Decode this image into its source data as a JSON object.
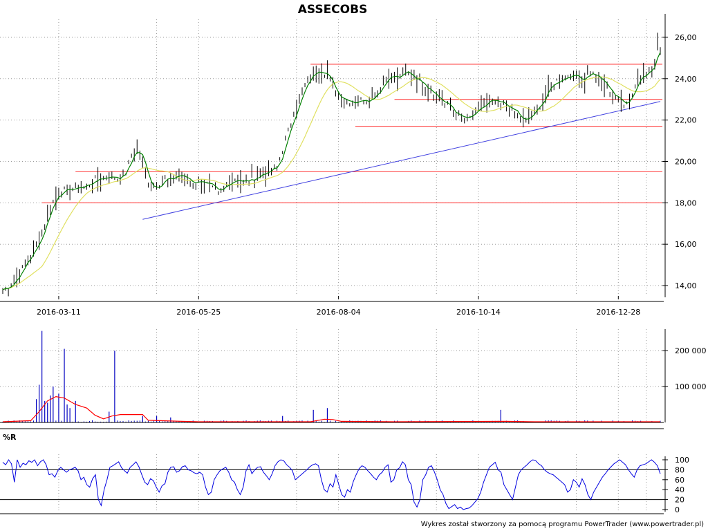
{
  "chart_data": {
    "title": "ASSECOBS",
    "footer": "Wykres został stworzony za pomocą programu PowerTrader (www.powertrader.pl)",
    "price_panel": {
      "type": "bar",
      "ylim": [
        13.5,
        26.8
      ],
      "yticks": [
        "14,00",
        "16,00",
        "18,00",
        "20,00",
        "22,00",
        "24,00",
        "26,00"
      ],
      "ytick_values": [
        14,
        16,
        18,
        20,
        22,
        24,
        26
      ],
      "xlabels": [
        "2016-03-11",
        "2016-05-25",
        "2016-08-04",
        "2016-10-14",
        "2016-12-28"
      ],
      "x_range_days": [
        0,
        235
      ],
      "xlabel_days": [
        20,
        70,
        120,
        170,
        220
      ],
      "close_points": [
        [
          0,
          13.8
        ],
        [
          3,
          14.1
        ],
        [
          6,
          14.6
        ],
        [
          9,
          15.3
        ],
        [
          12,
          15.9
        ],
        [
          14,
          16.6
        ],
        [
          16,
          17.4
        ],
        [
          18,
          18.1
        ],
        [
          20,
          18.5
        ],
        [
          23,
          18.6
        ],
        [
          26,
          18.7
        ],
        [
          29,
          18.8
        ],
        [
          32,
          19.0
        ],
        [
          35,
          19.2
        ],
        [
          38,
          19.3
        ],
        [
          41,
          19.2
        ],
        [
          44,
          19.5
        ],
        [
          46,
          20.3
        ],
        [
          48,
          20.6
        ],
        [
          50,
          20.0
        ],
        [
          52,
          19.0
        ],
        [
          54,
          18.8
        ],
        [
          56,
          18.9
        ],
        [
          58,
          19.2
        ],
        [
          60,
          19.0
        ],
        [
          62,
          19.4
        ],
        [
          65,
          19.2
        ],
        [
          68,
          19.0
        ],
        [
          71,
          19.1
        ],
        [
          74,
          18.8
        ],
        [
          77,
          18.4
        ],
        [
          80,
          18.9
        ],
        [
          83,
          19.2
        ],
        [
          86,
          19.0
        ],
        [
          89,
          19.1
        ],
        [
          92,
          19.4
        ],
        [
          95,
          19.5
        ],
        [
          98,
          19.7
        ],
        [
          100,
          20.6
        ],
        [
          102,
          21.4
        ],
        [
          104,
          22.4
        ],
        [
          106,
          23.0
        ],
        [
          108,
          23.6
        ],
        [
          110,
          24.1
        ],
        [
          112,
          24.4
        ],
        [
          114,
          24.5
        ],
        [
          116,
          24.2
        ],
        [
          118,
          23.5
        ],
        [
          120,
          23.2
        ],
        [
          123,
          23.0
        ],
        [
          126,
          22.9
        ],
        [
          129,
          23.0
        ],
        [
          132,
          23.1
        ],
        [
          135,
          23.6
        ],
        [
          138,
          24.2
        ],
        [
          141,
          24.0
        ],
        [
          144,
          24.3
        ],
        [
          147,
          24.1
        ],
        [
          150,
          23.8
        ],
        [
          153,
          23.5
        ],
        [
          156,
          23.0
        ],
        [
          159,
          22.7
        ],
        [
          162,
          22.3
        ],
        [
          165,
          22.0
        ],
        [
          168,
          22.2
        ],
        [
          171,
          22.6
        ],
        [
          174,
          22.9
        ],
        [
          177,
          22.8
        ],
        [
          180,
          22.7
        ],
        [
          183,
          22.4
        ],
        [
          186,
          21.9
        ],
        [
          189,
          22.2
        ],
        [
          192,
          22.8
        ],
        [
          195,
          23.5
        ],
        [
          198,
          23.9
        ],
        [
          201,
          24.1
        ],
        [
          204,
          24.2
        ],
        [
          207,
          24.0
        ],
        [
          210,
          24.3
        ],
        [
          213,
          24.0
        ],
        [
          216,
          23.6
        ],
        [
          219,
          23.1
        ],
        [
          222,
          22.8
        ],
        [
          225,
          23.3
        ],
        [
          227,
          24.0
        ],
        [
          229,
          24.3
        ],
        [
          231,
          24.4
        ],
        [
          233,
          24.6
        ],
        [
          234,
          25.7
        ],
        [
          235,
          25.5
        ]
      ],
      "horizontal_lines": [
        18.0,
        19.5,
        21.7,
        23.0,
        24.7
      ],
      "horizontal_line_starts": [
        14,
        26,
        126,
        140,
        110
      ],
      "trendline": {
        "from": [
          50,
          17.2
        ],
        "to": [
          235,
          22.9
        ]
      },
      "colors": {
        "bars": "#000000",
        "short_ma": "#008000",
        "long_ma": "#e0e060",
        "levels": "#ff5050",
        "trend": "#4040e0"
      }
    },
    "volume_panel": {
      "type": "bar",
      "ylim": [
        0,
        260000
      ],
      "yticks": [
        "100 000",
        "200 000"
      ],
      "ytick_values": [
        100000,
        200000
      ],
      "spikes": [
        [
          14,
          255000
        ],
        [
          13,
          105000
        ],
        [
          12,
          65000
        ],
        [
          15,
          60000
        ],
        [
          16,
          55000
        ],
        [
          17,
          75000
        ],
        [
          18,
          100000
        ],
        [
          20,
          80000
        ],
        [
          22,
          205000
        ],
        [
          23,
          50000
        ],
        [
          24,
          40000
        ],
        [
          26,
          60000
        ],
        [
          40,
          200000
        ],
        [
          38,
          30000
        ],
        [
          50,
          18000
        ],
        [
          55,
          18000
        ],
        [
          60,
          14000
        ],
        [
          116,
          40000
        ],
        [
          111,
          35000
        ],
        [
          100,
          18000
        ],
        [
          178,
          35000
        ]
      ],
      "base_volume": 3000,
      "ma": [
        [
          0,
          2000
        ],
        [
          10,
          5000
        ],
        [
          13,
          30000
        ],
        [
          16,
          60000
        ],
        [
          19,
          72000
        ],
        [
          22,
          68000
        ],
        [
          26,
          50000
        ],
        [
          30,
          40000
        ],
        [
          33,
          20000
        ],
        [
          36,
          10000
        ],
        [
          39,
          18000
        ],
        [
          42,
          22000
        ],
        [
          46,
          22000
        ],
        [
          50,
          22000
        ],
        [
          52,
          6000
        ],
        [
          60,
          4000
        ],
        [
          70,
          2000
        ],
        [
          110,
          2000
        ],
        [
          115,
          9000
        ],
        [
          118,
          8000
        ],
        [
          121,
          3000
        ],
        [
          140,
          2000
        ],
        [
          180,
          3000
        ],
        [
          190,
          2000
        ],
        [
          235,
          2000
        ]
      ],
      "colors": {
        "bars": "#0000c0",
        "ma": "#ff0000"
      }
    },
    "williams_r_panel": {
      "type": "line",
      "label": "%R",
      "ylim": [
        0,
        100
      ],
      "yticks": [
        "0",
        "20",
        "40",
        "60",
        "80",
        "100"
      ],
      "ytick_values": [
        0,
        20,
        40,
        60,
        80,
        100
      ],
      "reference_levels": [
        20,
        80
      ],
      "values": [
        95,
        90,
        100,
        92,
        55,
        100,
        85,
        93,
        90,
        98,
        95,
        100,
        88,
        96,
        100,
        90,
        70,
        72,
        65,
        78,
        85,
        80,
        75,
        80,
        82,
        85,
        78,
        60,
        65,
        50,
        45,
        62,
        70,
        20,
        8,
        40,
        60,
        85,
        88,
        92,
        96,
        84,
        78,
        73,
        85,
        90,
        96,
        86,
        70,
        55,
        50,
        62,
        58,
        45,
        35,
        48,
        52,
        75,
        85,
        86,
        75,
        78,
        86,
        88,
        80,
        78,
        74,
        72,
        75,
        70,
        45,
        30,
        35,
        60,
        70,
        78,
        82,
        85,
        75,
        60,
        55,
        40,
        30,
        45,
        78,
        90,
        72,
        80,
        85,
        86,
        75,
        68,
        60,
        72,
        88,
        96,
        100,
        98,
        90,
        85,
        78,
        60,
        65,
        70,
        75,
        80,
        86,
        90,
        92,
        88,
        60,
        40,
        35,
        52,
        45,
        70,
        50,
        30,
        25,
        40,
        35,
        56,
        70,
        82,
        88,
        85,
        78,
        72,
        65,
        60,
        70,
        75,
        85,
        90,
        55,
        60,
        80,
        84,
        96,
        90,
        60,
        50,
        15,
        5,
        20,
        60,
        70,
        85,
        88,
        76,
        60,
        40,
        30,
        12,
        2,
        6,
        10,
        2,
        5,
        0,
        2,
        3,
        8,
        15,
        22,
        35,
        55,
        70,
        85,
        90,
        95,
        80,
        75,
        50,
        40,
        30,
        20,
        45,
        70,
        80,
        85,
        90,
        96,
        100,
        98,
        92,
        88,
        80,
        75,
        72,
        70,
        65,
        60,
        55,
        50,
        35,
        40,
        60,
        55,
        45,
        62,
        50,
        30,
        20,
        35,
        45,
        55,
        65,
        72,
        80,
        86,
        92,
        96,
        100,
        95,
        90,
        80,
        72,
        65,
        80,
        88,
        90,
        92,
        96,
        100,
        95,
        88,
        72
      ],
      "colors": {
        "line": "#0000e0",
        "levels": "#000000"
      }
    }
  }
}
